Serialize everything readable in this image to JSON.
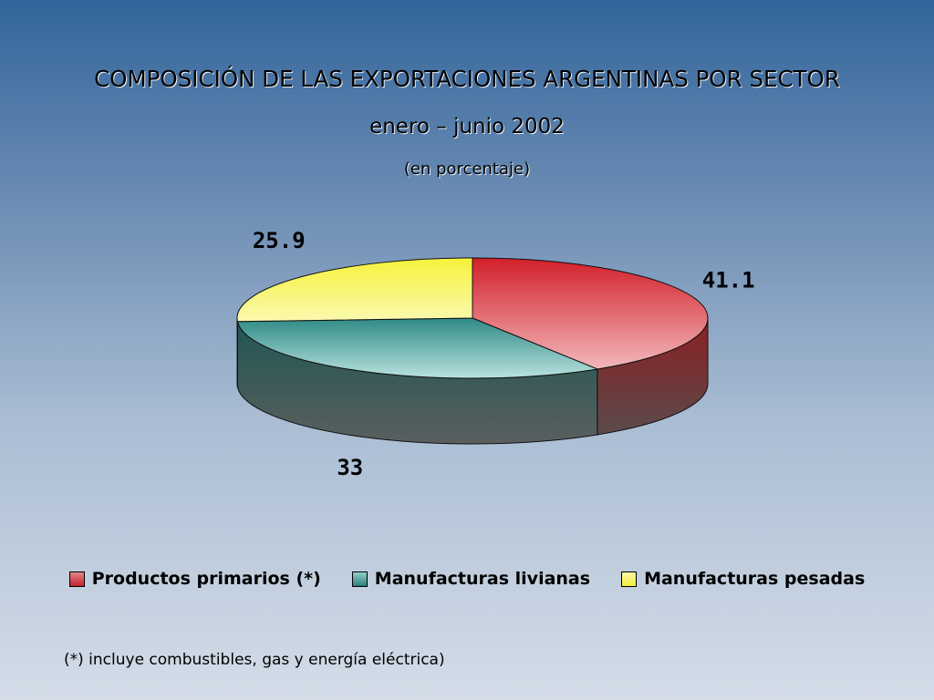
{
  "header": {
    "title": "COMPOSICIÓN DE LAS EXPORTACIONES ARGENTINAS POR SECTOR",
    "subtitle": "enero – junio 2002",
    "unit": "(en porcentaje)"
  },
  "chart_data": {
    "type": "pie",
    "title": "COMPOSICIÓN DE LAS EXPORTACIONES ARGENTINAS POR SECTOR",
    "subtitle": "enero – junio 2002",
    "unit": "(en porcentaje)",
    "three_d": true,
    "categories": [
      "Productos primarios (*)",
      "Manufacturas livianas",
      "Manufacturas pesadas"
    ],
    "values": [
      41.1,
      33,
      25.9
    ],
    "value_labels": [
      "41.1",
      "33",
      "25.9"
    ],
    "colors": [
      "#d93a3f",
      "#4a9e9a",
      "#f5f25a"
    ],
    "legend_position": "bottom"
  },
  "legend": {
    "items": [
      {
        "label": "Productos primarios (*)",
        "color": "#d93a3f"
      },
      {
        "label": "Manufacturas livianas",
        "color": "#4a9e9a"
      },
      {
        "label": "Manufacturas pesadas",
        "color": "#f5f25a"
      }
    ]
  },
  "footnote": "(*) incluye combustibles, gas y energía eléctrica)"
}
